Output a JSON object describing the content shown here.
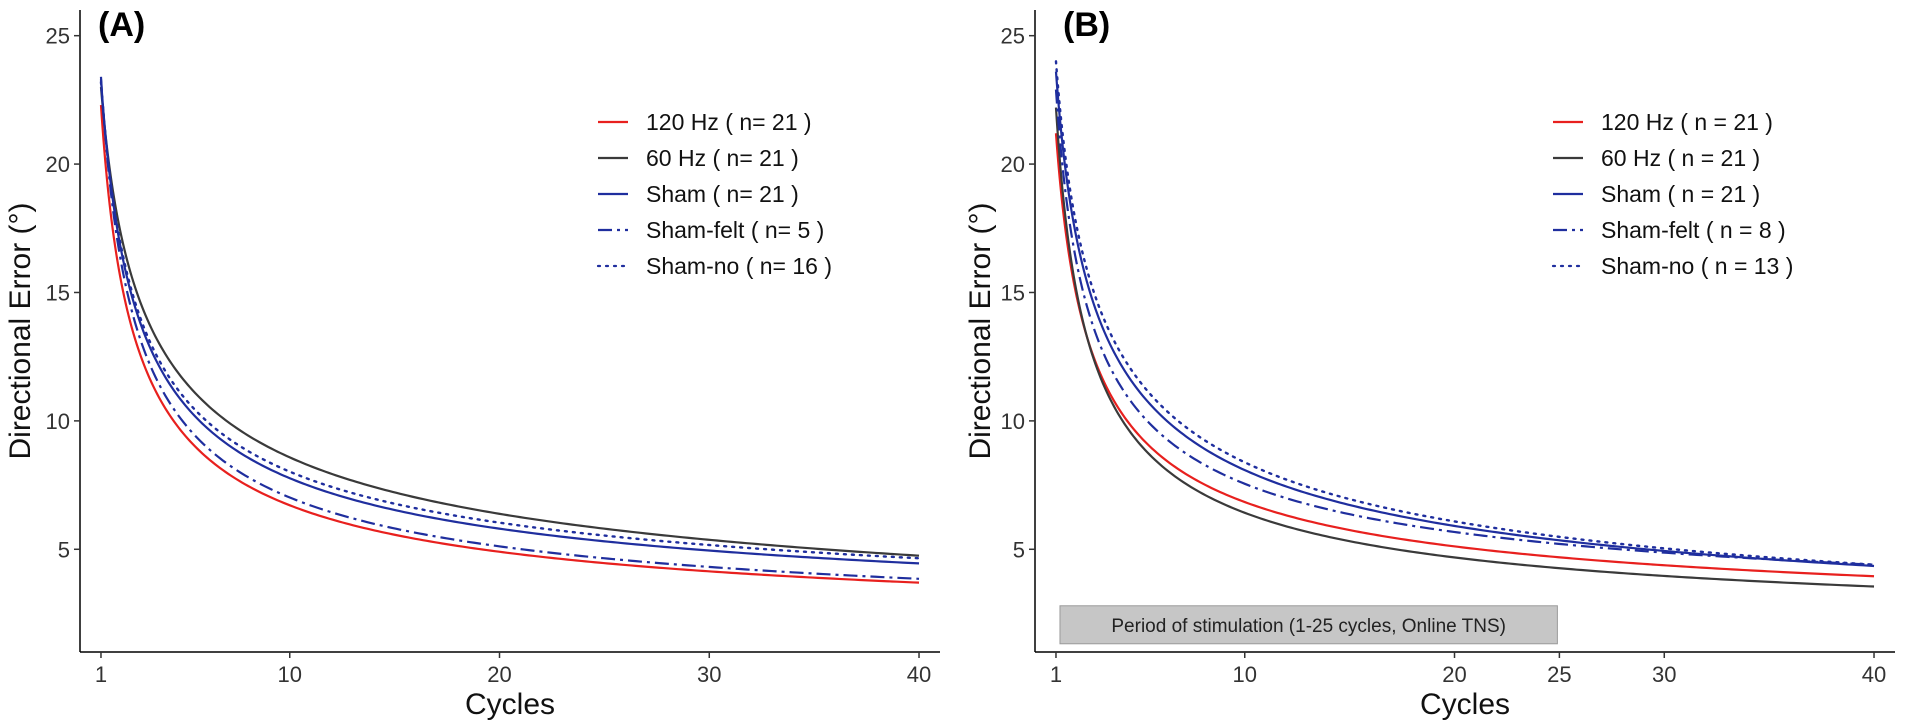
{
  "chart_data": [
    {
      "type": "line",
      "panel_label": "(A)",
      "xlabel": "Cycles",
      "ylabel": "Directional Error (°)",
      "xlim": [
        0.0,
        41.0
      ],
      "ylim": [
        1.0,
        26.0
      ],
      "x_ticks": [
        1,
        10,
        20,
        30,
        40
      ],
      "y_ticks": [
        5,
        10,
        15,
        20,
        25
      ],
      "grid": false,
      "legend_position": "top-right",
      "series": [
        {
          "name": "120 Hz ( n= 21 )",
          "color": "#e8201e",
          "style": "solid",
          "start": 22.3,
          "end": 3.7,
          "exponent": 0.59
        },
        {
          "name": "60 Hz ( n= 21 )",
          "color": "#3a3a3a",
          "style": "solid",
          "start": 23.0,
          "end": 4.75,
          "exponent": 0.43
        },
        {
          "name": "Sham ( n= 21 )",
          "color": "#1f2e9e",
          "style": "solid",
          "start": 23.3,
          "end": 4.45,
          "exponent": 0.54
        },
        {
          "name": "Sham-felt ( n= 5 )",
          "color": "#1f2e9e",
          "style": "dashdot",
          "start": 23.4,
          "end": 3.85,
          "exponent": 0.59
        },
        {
          "name": "Sham-no ( n= 16 )",
          "color": "#1f2e9e",
          "style": "dotted",
          "start": 23.2,
          "end": 4.65,
          "exponent": 0.52
        }
      ]
    },
    {
      "type": "line",
      "panel_label": "(B)",
      "xlabel": "Cycles",
      "ylabel": "Directional Error (°)",
      "xlim": [
        0.0,
        41.0
      ],
      "ylim": [
        1.0,
        26.0
      ],
      "x_ticks": [
        1,
        10,
        20,
        25,
        30,
        40
      ],
      "y_ticks": [
        5,
        10,
        15,
        20,
        25
      ],
      "grid": false,
      "legend_position": "top-right",
      "annotation": "Period of stimulation (1-25 cycles, Online TNS)",
      "shaded_range": [
        1,
        25
      ],
      "series": [
        {
          "name": "120 Hz ( n = 21 )",
          "color": "#e8201e",
          "style": "solid",
          "start": 21.2,
          "end": 3.95,
          "exponent": 0.57
        },
        {
          "name": "60 Hz ( n = 21 )",
          "color": "#3a3a3a",
          "style": "solid",
          "start": 22.2,
          "end": 3.55,
          "exponent": 0.62
        },
        {
          "name": "Sham ( n = 21 )",
          "color": "#1f2e9e",
          "style": "solid",
          "start": 23.6,
          "end": 4.35,
          "exponent": 0.48
        },
        {
          "name": "Sham-felt ( n = 8 )",
          "color": "#1f2e9e",
          "style": "dashdot",
          "start": 22.9,
          "end": 4.4,
          "exponent": 0.56
        },
        {
          "name": "Sham-no ( n = 13 )",
          "color": "#1f2e9e",
          "style": "dotted",
          "start": 24.0,
          "end": 4.4,
          "exponent": 0.45
        }
      ]
    }
  ]
}
